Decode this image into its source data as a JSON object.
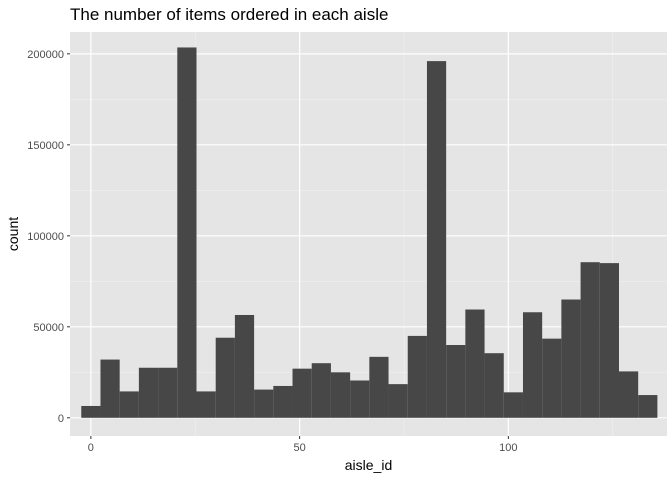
{
  "chart_data": {
    "type": "bar",
    "title": "The number of items ordered in each aisle",
    "xlabel": "aisle_id",
    "ylabel": "count",
    "xlim": [
      -5,
      138
    ],
    "ylim": [
      -10000,
      212000
    ],
    "x_ticks": [
      0,
      50,
      100
    ],
    "y_ticks": [
      0,
      50000,
      100000,
      150000,
      200000
    ],
    "x_tick_labels": [
      "0",
      "50",
      "100"
    ],
    "y_tick_labels": [
      "0",
      "50000",
      "100000",
      "150000",
      "200000"
    ],
    "bin_width": 4.6,
    "bins": [
      {
        "x": 0.0,
        "count": 6500
      },
      {
        "x": 4.6,
        "count": 32000
      },
      {
        "x": 9.2,
        "count": 14500
      },
      {
        "x": 13.8,
        "count": 27500
      },
      {
        "x": 18.4,
        "count": 27500
      },
      {
        "x": 23.0,
        "count": 203500
      },
      {
        "x": 27.6,
        "count": 14500
      },
      {
        "x": 32.2,
        "count": 44000
      },
      {
        "x": 36.8,
        "count": 56500
      },
      {
        "x": 41.4,
        "count": 15500
      },
      {
        "x": 46.0,
        "count": 17500
      },
      {
        "x": 50.6,
        "count": 27000
      },
      {
        "x": 55.2,
        "count": 30000
      },
      {
        "x": 59.8,
        "count": 25000
      },
      {
        "x": 64.4,
        "count": 20500
      },
      {
        "x": 69.0,
        "count": 33500
      },
      {
        "x": 73.6,
        "count": 18500
      },
      {
        "x": 78.2,
        "count": 45000
      },
      {
        "x": 82.8,
        "count": 196000
      },
      {
        "x": 87.4,
        "count": 40000
      },
      {
        "x": 92.0,
        "count": 59500
      },
      {
        "x": 96.6,
        "count": 35500
      },
      {
        "x": 101.2,
        "count": 14000
      },
      {
        "x": 105.8,
        "count": 58000
      },
      {
        "x": 110.4,
        "count": 43500
      },
      {
        "x": 115.0,
        "count": 65000
      },
      {
        "x": 119.6,
        "count": 85500
      },
      {
        "x": 124.2,
        "count": 85000
      },
      {
        "x": 128.8,
        "count": 25500
      },
      {
        "x": 133.4,
        "count": 12500
      }
    ],
    "bar_color": "#474747",
    "panel_color": "#e5e5e5",
    "grid_major_color": "#ffffff",
    "grid_minor_color": "#f0f0f0",
    "grid": true,
    "legend": "none"
  }
}
